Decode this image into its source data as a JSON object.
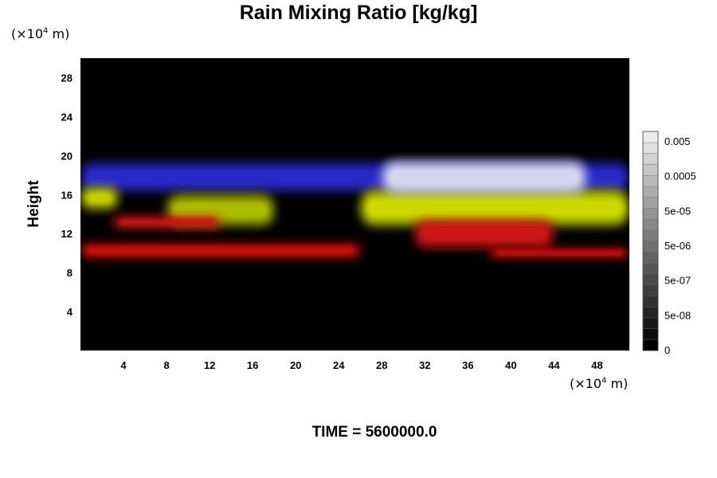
{
  "chart_data": {
    "type": "heatmap",
    "title": "Rain Mixing Ratio [kg/kg]",
    "ylabel": "Height",
    "y_unit_prefix": "(×10",
    "y_unit_exp": "4",
    "y_unit_suffix": " m)",
    "x_unit_prefix": "(×10",
    "x_unit_exp": "4",
    "x_unit_suffix": " m)",
    "footer": "TIME = 5600000.0",
    "xlim": [
      0,
      51
    ],
    "ylim": [
      0,
      30
    ],
    "x_ticks": [
      "4",
      "8",
      "12",
      "16",
      "20",
      "24",
      "28",
      "32",
      "36",
      "40",
      "44",
      "48"
    ],
    "y_ticks": [
      "4",
      "8",
      "12",
      "16",
      "20",
      "24",
      "28"
    ],
    "colorbar": {
      "labels": [
        "0.005",
        "0.0005",
        "5e-05",
        "5e-06",
        "5e-07",
        "5e-08",
        "0"
      ],
      "levels": 20
    },
    "background_color": "#000000",
    "features": [
      {
        "color": "#2a2acc",
        "x": [
          0,
          51
        ],
        "y": [
          16.3,
          19.3
        ],
        "band": "upper blue layer"
      },
      {
        "color": "#c8d000",
        "x": [
          0,
          3.5
        ],
        "y": [
          14.5,
          16.8
        ],
        "band": "yellow left"
      },
      {
        "color": "#b0c000",
        "x": [
          8,
          18
        ],
        "y": [
          12.8,
          16
        ],
        "band": "yellow center-left"
      },
      {
        "color": "#d0dd00",
        "x": [
          26,
          51
        ],
        "y": [
          12.8,
          16.5
        ],
        "band": "yellow right"
      },
      {
        "color": "#d8d8f0",
        "x": [
          28,
          47
        ],
        "y": [
          16,
          19.5
        ],
        "band": "white cap"
      },
      {
        "color": "#c81414",
        "x": [
          3,
          13
        ],
        "y": [
          12.5,
          13.8
        ],
        "band": "red upper left"
      },
      {
        "color": "#d01515",
        "x": [
          31,
          44
        ],
        "y": [
          10.5,
          13.5
        ],
        "band": "red right block"
      },
      {
        "color": "#d01010",
        "x": [
          0,
          26
        ],
        "y": [
          9.5,
          11
        ],
        "band": "red lower band left"
      },
      {
        "color": "#d01010",
        "x": [
          38,
          51
        ],
        "y": [
          9.5,
          10.5
        ],
        "band": "red lower band right"
      }
    ]
  }
}
